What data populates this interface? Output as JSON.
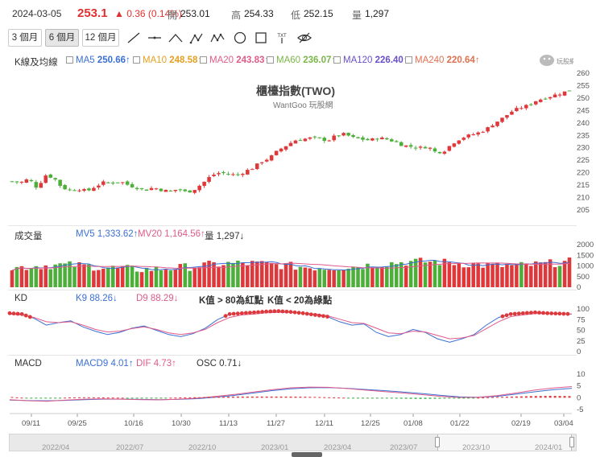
{
  "header": {
    "date": "2024-03-05",
    "price": "253.1",
    "change": "▲ 0.36 (0.14%)",
    "open_label": "開",
    "open_value": "253.01",
    "high_label": "高",
    "high_value": "254.33",
    "low_label": "低",
    "low_value": "252.15",
    "volume_label": "量",
    "volume_value": "1,297"
  },
  "range_buttons": [
    "3 個月",
    "6 個月",
    "12 個月"
  ],
  "active_range": "6 個月",
  "tools": [
    "line-icon",
    "horizontal-line-icon",
    "wave-icon",
    "pattern-abc-icon",
    "pattern-abcd-icon",
    "circle-icon",
    "rect-icon",
    "text-icon",
    "hide-icon"
  ],
  "ma_legend": {
    "title": "K線及均線",
    "items": [
      {
        "name": "MA5",
        "value": "250.66↑",
        "color": "#3b6fd4"
      },
      {
        "name": "MA10",
        "value": "248.58↑",
        "color": "#e6a020"
      },
      {
        "name": "MA20",
        "value": "243.83↑",
        "color": "#e05a8a"
      },
      {
        "name": "MA60",
        "value": "236.07↑",
        "color": "#7ab648"
      },
      {
        "name": "MA120",
        "value": "226.40↑",
        "color": "#6a4fc8"
      },
      {
        "name": "MA240",
        "value": "220.64↑",
        "color": "#e07050"
      }
    ]
  },
  "watermark": {
    "title": "櫃檯指數(TWO)",
    "subtitle": "WantGoo 玩股網",
    "logo_text": "玩股網"
  },
  "volume_legend": {
    "title": "成交量",
    "mv5": "MV5 1,333.62↑",
    "mv20": "MV20 1,164.56↑",
    "vol": "量 1,297↓"
  },
  "kd_legend": {
    "title": "KD",
    "k9": "K9 88.26↓",
    "d9": "D9 88.29↓",
    "rule1": "K值 > 80為紅點",
    "rule2": "K值 < 20為綠點"
  },
  "macd_legend": {
    "title": "MACD",
    "macd9": "MACD9 4.01↑",
    "dif": "DIF 4.73↑",
    "osc": "OSC 0.71↓"
  },
  "x_labels": [
    "09/11",
    "09/25",
    "10/16",
    "10/30",
    "11/13",
    "11/27",
    "12/11",
    "12/25",
    "01/08",
    "01/22",
    "02/19",
    "03/04"
  ],
  "nav_labels": [
    "2022/04",
    "2022/07",
    "2022/10",
    "2023/01",
    "2023/04",
    "2023/07",
    "2023/10",
    "2024/01"
  ],
  "colors": {
    "up": "#e0383a",
    "down": "#4caf3a",
    "k_line": "#3b6fd4",
    "d_line": "#e05a8a",
    "red_dot": "#e0383a",
    "green_dot": "#2fae3a"
  },
  "chart_data": [
    {
      "type": "candlestick",
      "title": "櫃檯指數(TWO)",
      "ylim": [
        205,
        260
      ],
      "y_ticks": [
        205,
        210,
        215,
        220,
        225,
        230,
        235,
        240,
        245,
        250,
        255,
        260
      ],
      "close_path": [
        [
          0,
          216.5
        ],
        [
          3,
          216
        ],
        [
          6,
          217.5
        ],
        [
          9,
          214
        ],
        [
          12,
          219
        ],
        [
          15,
          218
        ],
        [
          18,
          214
        ],
        [
          21,
          213
        ],
        [
          24,
          213.5
        ],
        [
          27,
          212.5
        ],
        [
          30,
          214.5
        ],
        [
          33,
          216
        ],
        [
          36,
          216
        ],
        [
          39,
          216.5
        ],
        [
          42,
          215
        ],
        [
          45,
          214
        ],
        [
          48,
          213
        ],
        [
          51,
          214
        ],
        [
          54,
          213
        ],
        [
          57,
          212.5
        ],
        [
          60,
          213.5
        ],
        [
          63,
          212
        ],
        [
          66,
          213.5
        ],
        [
          69,
          216
        ],
        [
          72,
          219
        ],
        [
          75,
          220
        ],
        [
          78,
          219.5
        ],
        [
          81,
          219
        ],
        [
          84,
          220.5
        ],
        [
          87,
          222
        ],
        [
          90,
          224.5
        ],
        [
          93,
          226
        ],
        [
          96,
          229
        ],
        [
          99,
          231
        ],
        [
          102,
          233
        ],
        [
          105,
          233.5
        ],
        [
          108,
          234
        ],
        [
          111,
          233.5
        ],
        [
          114,
          233
        ],
        [
          117,
          235
        ],
        [
          120,
          235.5
        ],
        [
          123,
          234
        ],
        [
          126,
          233.5
        ],
        [
          129,
          233
        ],
        [
          132,
          234
        ],
        [
          135,
          233.5
        ],
        [
          138,
          232.5
        ],
        [
          141,
          231
        ],
        [
          144,
          230.5
        ],
        [
          147,
          230
        ],
        [
          150,
          230.5
        ],
        [
          153,
          228
        ],
        [
          156,
          229
        ],
        [
          159,
          232
        ],
        [
          162,
          234
        ],
        [
          165,
          235
        ],
        [
          168,
          236
        ],
        [
          171,
          237.5
        ],
        [
          174,
          240
        ],
        [
          177,
          242
        ],
        [
          180,
          244.5
        ],
        [
          183,
          246
        ],
        [
          186,
          247
        ],
        [
          189,
          249
        ],
        [
          192,
          250
        ],
        [
          195,
          251
        ],
        [
          198,
          252
        ],
        [
          201,
          253.1
        ]
      ]
    },
    {
      "type": "bar",
      "title": "成交量",
      "ylim": [
        0,
        2000
      ],
      "y_ticks": [
        0,
        500,
        1000,
        1500,
        2000
      ],
      "mv_lines": [
        "MV5",
        "MV20"
      ]
    },
    {
      "type": "line",
      "title": "KD",
      "ylim": [
        0,
        100
      ],
      "y_ticks": [
        0,
        25,
        50,
        75,
        100
      ],
      "series": [
        {
          "name": "K9",
          "values": [
            90,
            88,
            78,
            62,
            68,
            72,
            58,
            48,
            40,
            45,
            55,
            60,
            50,
            40,
            35,
            42,
            55,
            75,
            88,
            90,
            92,
            94,
            95,
            93,
            90,
            86,
            82,
            70,
            62,
            65,
            45,
            35,
            40,
            52,
            45,
            30,
            22,
            30,
            40,
            62,
            80,
            88,
            90,
            92,
            90,
            89,
            88
          ]
        },
        {
          "name": "D9",
          "values": [
            88,
            86,
            80,
            70,
            68,
            70,
            62,
            52,
            46,
            48,
            54,
            58,
            52,
            44,
            40,
            44,
            52,
            68,
            80,
            86,
            88,
            91,
            92,
            92,
            90,
            88,
            84,
            76,
            68,
            66,
            55,
            44,
            42,
            48,
            46,
            38,
            30,
            32,
            38,
            54,
            70,
            82,
            86,
            89,
            89,
            89,
            88
          ]
        }
      ]
    },
    {
      "type": "line",
      "title": "MACD",
      "ylim": [
        -5,
        10
      ],
      "y_ticks": [
        -5,
        0,
        5,
        10
      ],
      "series": [
        {
          "name": "MACD9",
          "values": [
            -1,
            -1.2,
            -1.3,
            -1.1,
            -0.8,
            -0.6,
            -0.6,
            -0.7,
            -0.8,
            -0.7,
            -0.4,
            0.2,
            1.0,
            2.0,
            3.0,
            3.8,
            4.2,
            4.3,
            4.0,
            3.5,
            3.0,
            2.4,
            1.8,
            1.0,
            0.4,
            0.2,
            0.6,
            1.5,
            2.5,
            3.4,
            4.0
          ]
        },
        {
          "name": "DIF",
          "values": [
            -0.8,
            -1.3,
            -1.5,
            -1.0,
            -0.6,
            -0.5,
            -0.6,
            -0.8,
            -0.9,
            -0.6,
            -0.2,
            0.6,
            1.4,
            2.4,
            3.4,
            4.2,
            4.5,
            4.4,
            3.9,
            3.2,
            2.6,
            2.0,
            1.3,
            0.6,
            0.1,
            0.2,
            0.9,
            2.0,
            3.2,
            4.1,
            4.73
          ]
        },
        {
          "name": "OSC",
          "values": [
            0.3,
            -0.2,
            -0.3,
            0.1,
            0.2,
            0.1,
            0,
            -0.1,
            -0.1,
            0.1,
            0.2,
            0.4,
            0.5,
            0.5,
            0.5,
            0.5,
            0.4,
            0.2,
            0,
            -0.2,
            -0.3,
            -0.4,
            -0.5,
            -0.4,
            -0.3,
            0,
            0.3,
            0.5,
            0.7,
            0.8,
            0.71
          ]
        }
      ]
    }
  ]
}
